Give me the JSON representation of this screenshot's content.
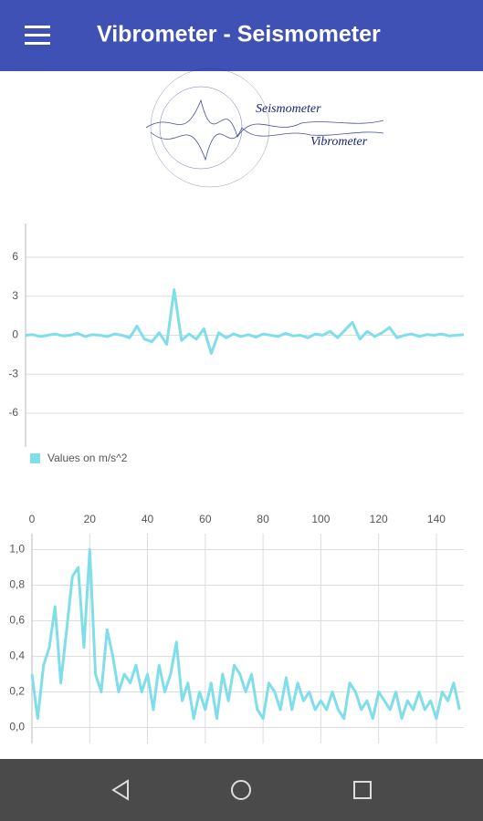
{
  "header": {
    "title": "Vibrometer - Seismometer"
  },
  "logo": {
    "top": "Seismometer",
    "bottom": "Vibrometer"
  },
  "chart_data": [
    {
      "type": "line",
      "legend": "Values on m/s^2",
      "color": "#80deea",
      "ylim": [
        -8.6,
        8.6
      ],
      "yticks": [
        6,
        3,
        0,
        -3,
        -6
      ],
      "grid": true,
      "values": [
        0,
        0.05,
        -0.1,
        0,
        0.1,
        -0.05,
        0,
        0.15,
        -0.1,
        0.05,
        0,
        -0.1,
        0.1,
        0,
        -0.2,
        0.7,
        -0.3,
        -0.5,
        0.2,
        -0.7,
        3.5,
        -0.4,
        0.1,
        -0.3,
        0.5,
        -1.4,
        0.2,
        -0.2,
        0.1,
        -0.1,
        0.05,
        -0.15,
        0.1,
        0,
        -0.1,
        0.15,
        -0.05,
        0,
        -0.2,
        0.1,
        0,
        0.3,
        -0.2,
        0.4,
        1.0,
        -0.3,
        0.3,
        -0.1,
        0.2,
        0.6,
        -0.2,
        0,
        0.1,
        -0.1,
        0.05,
        0,
        0.1,
        -0.05,
        0,
        0.05
      ]
    },
    {
      "type": "line",
      "color": "#80deea",
      "grid": true,
      "xlim": [
        0,
        149.5
      ],
      "xticks": [
        0,
        20,
        40,
        60,
        80,
        100,
        120,
        140
      ],
      "ylim": [
        -0.09,
        1.09
      ],
      "yticks": [
        {
          "value": 0,
          "label": "0,0"
        },
        {
          "value": 0.2,
          "label": "0,2"
        },
        {
          "value": 0.4,
          "label": "0,4"
        },
        {
          "value": 0.6,
          "label": "0,6"
        },
        {
          "value": 0.8,
          "label": "0,8"
        },
        {
          "value": 1,
          "label": "1,0"
        }
      ],
      "x": [
        0,
        2,
        4,
        6,
        8,
        10,
        12,
        14,
        16,
        18,
        20,
        22,
        24,
        26,
        28,
        30,
        32,
        34,
        36,
        38,
        40,
        42,
        44,
        46,
        48,
        50,
        52,
        54,
        56,
        58,
        60,
        62,
        64,
        66,
        68,
        70,
        72,
        74,
        76,
        78,
        80,
        82,
        84,
        86,
        88,
        90,
        92,
        94,
        96,
        98,
        100,
        102,
        104,
        106,
        108,
        110,
        112,
        114,
        116,
        118,
        120,
        122,
        124,
        126,
        128,
        130,
        132,
        134,
        136,
        138,
        140,
        142,
        144,
        146,
        148
      ],
      "values": [
        0.3,
        0.05,
        0.35,
        0.45,
        0.68,
        0.25,
        0.55,
        0.85,
        0.9,
        0.45,
        1.0,
        0.3,
        0.2,
        0.55,
        0.4,
        0.2,
        0.3,
        0.25,
        0.35,
        0.2,
        0.3,
        0.1,
        0.35,
        0.2,
        0.3,
        0.48,
        0.15,
        0.25,
        0.05,
        0.2,
        0.1,
        0.25,
        0.05,
        0.3,
        0.15,
        0.35,
        0.3,
        0.2,
        0.3,
        0.1,
        0.05,
        0.25,
        0.2,
        0.1,
        0.28,
        0.1,
        0.25,
        0.15,
        0.2,
        0.1,
        0.15,
        0.1,
        0.2,
        0.1,
        0.05,
        0.25,
        0.2,
        0.1,
        0.15,
        0.05,
        0.2,
        0.15,
        0.1,
        0.2,
        0.05,
        0.15,
        0.1,
        0.2,
        0.1,
        0.15,
        0.05,
        0.2,
        0.15,
        0.25,
        0.1
      ]
    }
  ]
}
